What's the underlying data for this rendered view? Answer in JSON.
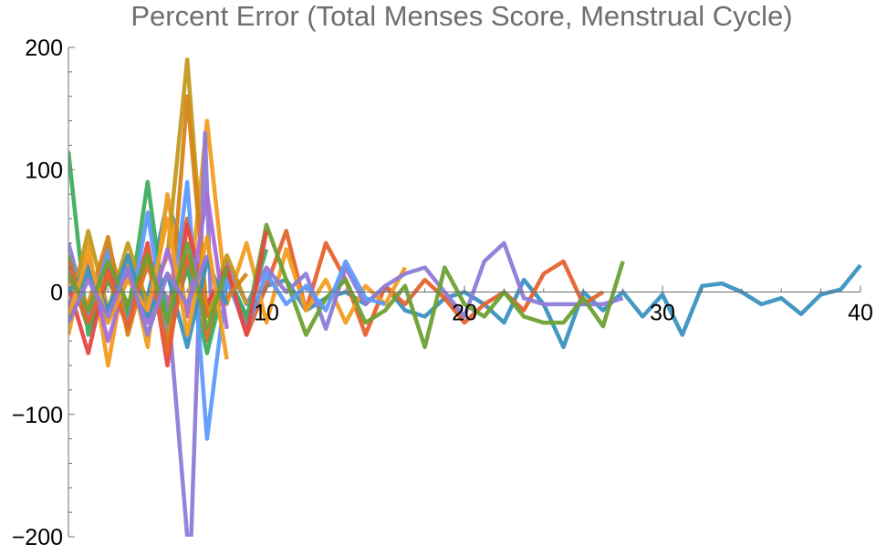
{
  "chart_data": {
    "type": "line",
    "title": "Percent Error (Total Menses Score, Menstrual Cycle)",
    "xlabel": "",
    "ylabel": "",
    "xlim": [
      0,
      40
    ],
    "ylim": [
      -200,
      200
    ],
    "x_ticks": [
      {
        "value": 10,
        "label": "10"
      },
      {
        "value": 20,
        "label": "20"
      },
      {
        "value": 30,
        "label": "30"
      },
      {
        "value": 40,
        "label": "40"
      }
    ],
    "y_ticks": [
      {
        "value": 200,
        "label": "200"
      },
      {
        "value": 100,
        "label": "100"
      },
      {
        "value": 0,
        "label": "0"
      },
      {
        "value": -100,
        "label": "−100"
      },
      {
        "value": -200,
        "label": "−200"
      }
    ],
    "grid": false,
    "legend": "none",
    "series": [
      {
        "color": "#3b92bf",
        "x": [
          0,
          1,
          2,
          3,
          4,
          5,
          6,
          7,
          8,
          9,
          10,
          11,
          12,
          13,
          14,
          15,
          16,
          17,
          18,
          19,
          20,
          21,
          22,
          23,
          24,
          25,
          26,
          27,
          28,
          29,
          30,
          31,
          32,
          33,
          34,
          35,
          36,
          37,
          38,
          39,
          40
        ],
        "y": [
          -10,
          15,
          -25,
          20,
          -5,
          75,
          20,
          -10,
          15,
          -20,
          5,
          10,
          -15,
          -5,
          0,
          -10,
          5,
          -15,
          -20,
          -5,
          0,
          -10,
          -25,
          10,
          -10,
          -45,
          0,
          -15,
          0,
          -20,
          -2,
          -35,
          5,
          7,
          0,
          -10,
          -5,
          -18,
          -2,
          2,
          22
        ]
      },
      {
        "color": "#e6632e",
        "x": [
          0,
          1,
          2,
          3,
          4,
          5,
          6,
          7,
          8,
          9,
          10,
          11,
          12,
          13,
          14,
          15,
          16,
          17,
          18,
          19,
          20,
          21,
          22,
          23,
          24,
          25,
          26,
          27
        ],
        "y": [
          20,
          -30,
          10,
          -25,
          30,
          -15,
          60,
          -40,
          15,
          -35,
          5,
          50,
          -15,
          40,
          10,
          -35,
          5,
          -10,
          10,
          -5,
          -25,
          -10,
          0,
          -15,
          15,
          25,
          -10,
          0
        ]
      },
      {
        "color": "#f29d20",
        "x": [
          0,
          1,
          2,
          3,
          4,
          5,
          6,
          7,
          8,
          9,
          10,
          11,
          12,
          13,
          14,
          15,
          16,
          17
        ],
        "y": [
          -35,
          40,
          -60,
          30,
          -45,
          80,
          -20,
          140,
          -10,
          40,
          -25,
          35,
          -15,
          10,
          -25,
          5,
          -10,
          20
        ]
      },
      {
        "color": "#8f7bd9",
        "x": [
          0,
          1,
          2,
          3,
          4,
          5,
          6,
          6.2,
          6.9,
          7.2,
          8,
          9,
          10,
          11,
          12,
          13,
          14,
          15,
          16,
          17,
          18,
          19,
          20,
          21,
          22,
          23,
          24,
          25,
          26,
          27,
          28
        ],
        "y": [
          40,
          -20,
          30,
          -15,
          20,
          -5,
          -200,
          -200,
          130,
          -10,
          25,
          -10,
          20,
          0,
          15,
          -30,
          20,
          -10,
          5,
          15,
          20,
          0,
          -20,
          25,
          40,
          -5,
          -10,
          -10,
          -10,
          -10,
          -5
        ]
      },
      {
        "color": "#6ea033",
        "x": [
          0,
          1,
          2,
          3,
          4,
          5,
          6,
          7,
          8,
          9,
          10,
          11,
          12,
          13,
          14,
          15,
          16,
          17,
          18,
          19,
          20,
          21,
          22,
          23,
          24,
          25,
          26,
          27,
          28
        ],
        "y": [
          30,
          -30,
          40,
          -20,
          30,
          -35,
          20,
          -15,
          10,
          -25,
          55,
          10,
          -35,
          -5,
          10,
          -25,
          -15,
          5,
          -45,
          20,
          -10,
          -20,
          0,
          -20,
          -25,
          -25,
          -5,
          -28,
          25
        ]
      },
      {
        "color": "#3fae60",
        "x": [
          0,
          1,
          2,
          3,
          4,
          5,
          6,
          7,
          8,
          9,
          10
        ],
        "y": [
          115,
          -35,
          10,
          -20,
          90,
          -30,
          20,
          -50,
          15,
          -20,
          35
        ]
      },
      {
        "color": "#c29a1f",
        "x": [
          0,
          1,
          2,
          3,
          4,
          5,
          6,
          7,
          8,
          9
        ],
        "y": [
          -20,
          50,
          -15,
          40,
          -10,
          30,
          190,
          -20,
          30,
          -10
        ]
      },
      {
        "color": "#5e9bfc",
        "x": [
          0,
          1,
          2,
          3,
          4,
          5,
          6,
          7,
          8,
          9,
          10,
          11,
          12,
          13,
          14,
          15,
          16
        ],
        "y": [
          20,
          -20,
          35,
          -30,
          65,
          -40,
          90,
          -120,
          10,
          -30,
          15,
          -10,
          5,
          -15,
          25,
          -5,
          -10
        ]
      },
      {
        "color": "#e74747",
        "x": [
          0,
          1,
          2,
          3,
          4,
          5,
          6,
          7,
          8,
          9,
          10
        ],
        "y": [
          5,
          -50,
          20,
          -30,
          40,
          -60,
          55,
          -10,
          20,
          -35,
          50
        ]
      },
      {
        "color": "#d88418",
        "x": [
          0,
          1,
          2,
          3,
          4,
          5,
          6,
          7,
          8,
          9
        ],
        "y": [
          10,
          -10,
          45,
          -35,
          25,
          -45,
          160,
          -20,
          -5,
          15
        ]
      },
      {
        "color": "#a66fd8",
        "x": [
          0,
          1,
          2,
          3,
          4,
          5,
          6,
          7,
          8
        ],
        "y": [
          -15,
          25,
          -40,
          15,
          -25,
          35,
          -20,
          80,
          -30
        ]
      },
      {
        "color": "#3b92bf",
        "x": [
          0,
          1,
          2,
          3,
          4,
          5,
          6,
          7,
          8
        ],
        "y": [
          0,
          20,
          -15,
          30,
          -20,
          15,
          -45,
          25,
          -10
        ]
      },
      {
        "color": "#e6632e",
        "x": [
          0,
          1,
          2,
          3,
          4,
          5,
          6,
          7
        ],
        "y": [
          25,
          -25,
          15,
          -30,
          35,
          -50,
          30,
          -20
        ]
      },
      {
        "color": "#f29d20",
        "x": [
          0,
          1,
          2,
          3,
          4,
          5,
          6,
          7,
          8
        ],
        "y": [
          -20,
          30,
          -25,
          10,
          -15,
          60,
          -35,
          45,
          -55
        ]
      },
      {
        "color": "#6ea033",
        "x": [
          0,
          1,
          2,
          3,
          4,
          5,
          6,
          7,
          8
        ],
        "y": [
          15,
          -15,
          25,
          -10,
          30,
          -25,
          40,
          -30,
          20
        ]
      },
      {
        "color": "#8f7bd9",
        "x": [
          0,
          1,
          2,
          3,
          4,
          5,
          6,
          7
        ],
        "y": [
          -25,
          10,
          -20,
          20,
          -35,
          15,
          -10,
          30
        ]
      }
    ]
  }
}
